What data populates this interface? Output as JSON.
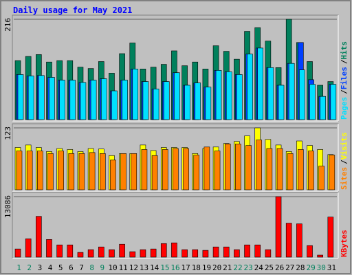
{
  "title": "Daily usage for May 2021",
  "chart_data": [
    {
      "type": "bar",
      "ylim": [
        0,
        216
      ],
      "yticks": [
        216
      ],
      "legend_separator": "/",
      "series": [
        {
          "name": "Hits",
          "color": "#00805c",
          "values": [
            127,
            136,
            140,
            124,
            127,
            127,
            113,
            110,
            125,
            100,
            142,
            165,
            109,
            113,
            119,
            148,
            116,
            124,
            109,
            159,
            147,
            130,
            190,
            198,
            169,
            112,
            216,
            166,
            125,
            74,
            82
          ]
        },
        {
          "name": "Files",
          "color": "#0040ff",
          "values": [
            97,
            94,
            95,
            91,
            85,
            85,
            80,
            85,
            88,
            62,
            85,
            109,
            82,
            66,
            82,
            101,
            74,
            79,
            70,
            106,
            103,
            97,
            141,
            154,
            112,
            74,
            121,
            166,
            86,
            50,
            76
          ]
        },
        {
          "name": "Pages",
          "color": "#00e0ff",
          "values": [
            97,
            94,
            95,
            91,
            85,
            85,
            80,
            85,
            88,
            62,
            85,
            109,
            82,
            66,
            82,
            101,
            74,
            79,
            70,
            106,
            103,
            97,
            141,
            154,
            112,
            74,
            121,
            107,
            76,
            50,
            76
          ]
        }
      ]
    },
    {
      "type": "bar",
      "ylim": [
        0,
        123
      ],
      "yticks": [
        123
      ],
      "legend_separator": "/",
      "series": [
        {
          "name": "Visits",
          "color": "#ffff00",
          "values": [
            84,
            89,
            84,
            76,
            82,
            80,
            76,
            82,
            81,
            68,
            72,
            72,
            89,
            78,
            84,
            84,
            84,
            72,
            82,
            85,
            92,
            96,
            107,
            123,
            100,
            89,
            76,
            97,
            88,
            80,
            70
          ]
        },
        {
          "name": "Sites",
          "color": "#ff8000",
          "values": [
            77,
            77,
            77,
            72,
            77,
            72,
            72,
            74,
            72,
            59,
            72,
            72,
            80,
            68,
            80,
            82,
            82,
            69,
            85,
            77,
            91,
            91,
            88,
            99,
            82,
            82,
            72,
            80,
            77,
            47,
            69
          ]
        }
      ]
    },
    {
      "type": "bar",
      "ylim": [
        0,
        13086
      ],
      "yticks": [
        13086
      ],
      "categories": [
        "1",
        "2",
        "3",
        "4",
        "5",
        "6",
        "7",
        "8",
        "9",
        "10",
        "11",
        "12",
        "13",
        "14",
        "15",
        "16",
        "17",
        "18",
        "19",
        "20",
        "21",
        "22",
        "23",
        "24",
        "25",
        "26",
        "27",
        "28",
        "29",
        "30",
        "31"
      ],
      "highlight_categories": [
        0,
        1,
        7,
        8,
        14,
        15,
        21,
        22,
        28,
        29
      ],
      "highlight_color": "#00805c",
      "series": [
        {
          "name": "KBytes",
          "color": "#ff0000",
          "values": [
            1764,
            3969,
            8820,
            3822,
            2646,
            2646,
            1029,
            1617,
            2205,
            1617,
            2793,
            1176,
            1617,
            1764,
            2940,
            3087,
            1617,
            1617,
            1470,
            2205,
            2205,
            1617,
            2646,
            2646,
            1617,
            13086,
            7350,
            7203,
            2499,
            441,
            8673
          ]
        }
      ]
    }
  ]
}
